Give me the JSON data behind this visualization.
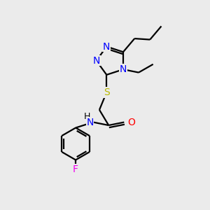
{
  "bg_color": "#ebebeb",
  "bond_color": "#000000",
  "N_color": "#0000ff",
  "O_color": "#ff0000",
  "S_color": "#b8b800",
  "F_color": "#ee00ee",
  "line_width": 1.6,
  "font_size": 10,
  "xlim": [
    0,
    10
  ],
  "ylim": [
    0,
    10
  ]
}
